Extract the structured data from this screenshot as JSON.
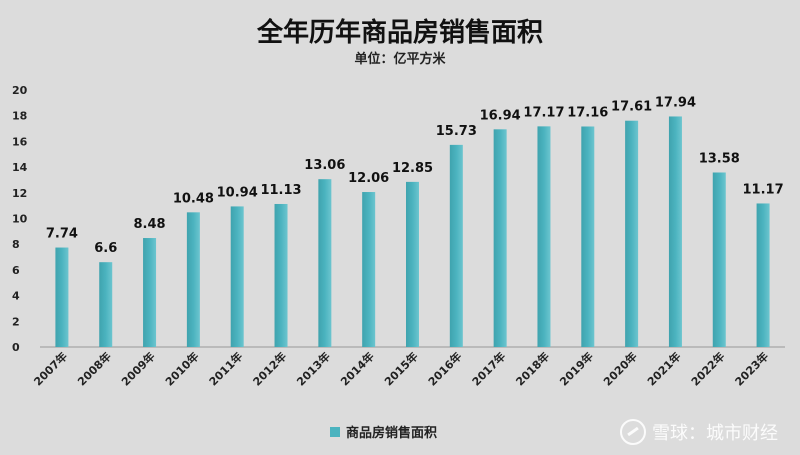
{
  "chart_data": {
    "type": "bar",
    "title": "全年历年商品房销售面积",
    "subtitle": "单位：亿平方米",
    "categories": [
      "2007年",
      "2008年",
      "2009年",
      "2010年",
      "2011年",
      "2012年",
      "2013年",
      "2014年",
      "2015年",
      "2016年",
      "2017年",
      "2018年",
      "2019年",
      "2020年",
      "2021年",
      "2022年",
      "2023年"
    ],
    "series": [
      {
        "name": "商品房销售面积",
        "values": [
          7.74,
          6.6,
          8.48,
          10.48,
          10.94,
          11.13,
          13.06,
          12.06,
          12.85,
          15.73,
          16.94,
          17.17,
          17.16,
          17.61,
          17.94,
          13.58,
          11.17
        ]
      }
    ],
    "data_labels": [
      "7.74",
      "6.6",
      "8.48",
      "10.48",
      "10.94",
      "11.13",
      "13.06",
      "12.06",
      "12.85",
      "15.73",
      "16.94",
      "17.17",
      "17.16",
      "17.61",
      "17.94",
      "13.58",
      "11.17"
    ],
    "y_ticks": [
      "0",
      "2",
      "4",
      "6",
      "8",
      "10",
      "12",
      "14",
      "16",
      "18",
      "20"
    ],
    "ylim": [
      0,
      20
    ],
    "grid": false,
    "legend_position": "bottom",
    "bar_color": "#4bb3bf"
  },
  "watermark": {
    "text": "雪球：城市财经"
  }
}
